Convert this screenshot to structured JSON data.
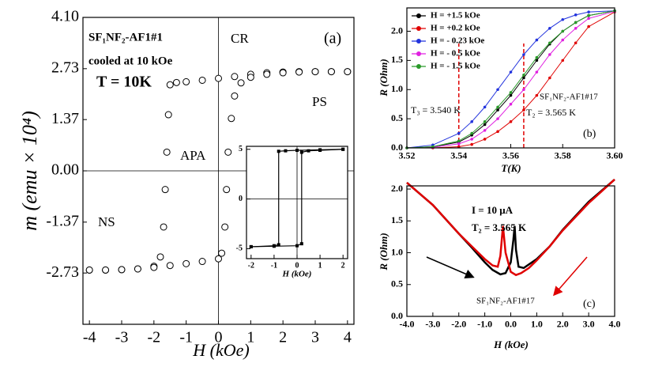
{
  "chart_data": [
    {
      "type": "scatter",
      "xlabel": "H (kOe)",
      "ylabel": "m (emu × 10⁴)",
      "xlim": [
        -4.2,
        4.2
      ],
      "ylim": [
        -4.1,
        4.1
      ],
      "xticks": [
        -4,
        -3,
        -2,
        -1,
        0,
        1,
        2,
        3,
        4
      ],
      "yticks": [
        {
          "value": 4.1,
          "label": "4.10"
        },
        2.73,
        1.37,
        {
          "value": 0,
          "label": "0.00"
        },
        -1.37,
        -2.73
      ],
      "zero_lines": true,
      "marker": "circle",
      "series": [
        {
          "color": "#000000",
          "x": [
            4,
            3.5,
            3,
            2.5,
            2,
            1.5,
            1,
            0.5,
            0,
            -0.5,
            -1,
            -1.3,
            -1.5,
            -1.55,
            -1.6,
            -1.65,
            -1.7,
            -1.8,
            -2,
            -2.5,
            -3,
            -3.5,
            -4
          ],
          "values": [
            2.65,
            2.65,
            2.65,
            2.65,
            2.64,
            2.62,
            2.58,
            2.52,
            2.47,
            2.42,
            2.38,
            2.36,
            2.3,
            1.5,
            0.5,
            -0.5,
            -1.5,
            -2.3,
            -2.55,
            -2.62,
            -2.64,
            -2.65,
            -2.65
          ]
        },
        {
          "color": "#000000",
          "x": [
            -4,
            -3.5,
            -3,
            -2.5,
            -2,
            -1.5,
            -1,
            -0.5,
            0,
            0.1,
            0.2,
            0.25,
            0.3,
            0.4,
            0.5,
            0.7,
            1,
            1.5,
            2,
            2.5,
            3,
            3.5,
            4
          ],
          "values": [
            -2.65,
            -2.65,
            -2.64,
            -2.62,
            -2.58,
            -2.53,
            -2.48,
            -2.42,
            -2.35,
            -2.2,
            -1.5,
            -0.5,
            0.5,
            1.4,
            2.0,
            2.35,
            2.5,
            2.58,
            2.62,
            2.64,
            2.65,
            2.65,
            2.65
          ]
        }
      ],
      "annotations": [
        "SF₁NF₂-AF1#1",
        "cooled at 10 kOe",
        "T = 10K",
        "CR",
        "(a)",
        "PS",
        "APA",
        "NS"
      ]
    },
    {
      "type": "line",
      "xlabel": "H (kOe)",
      "xlim": [
        -2.2,
        2.2
      ],
      "ylim": [
        -6,
        5.3
      ],
      "xticks": [
        -2,
        -1,
        0,
        1,
        2
      ],
      "yticks": [
        -5,
        0,
        5
      ],
      "zero_lines": true,
      "marker": "square",
      "series": [
        {
          "color": "#000000",
          "x": [
            2,
            1,
            0,
            -0.5,
            -0.8,
            -0.8,
            -1,
            -2
          ],
          "values": [
            5,
            4.95,
            4.9,
            4.85,
            4.8,
            -4.6,
            -4.7,
            -4.8
          ]
        },
        {
          "color": "#000000",
          "x": [
            -2,
            -1,
            0,
            0.2,
            0.2,
            0.5,
            1,
            2
          ],
          "values": [
            -4.8,
            -4.75,
            -4.7,
            -4.5,
            4.7,
            4.85,
            4.9,
            5
          ]
        }
      ]
    },
    {
      "type": "line",
      "xlabel": "T(K)",
      "ylabel": "R (Ohm)",
      "xlim": [
        3.52,
        3.6
      ],
      "ylim": [
        0,
        2.4
      ],
      "xticks": [
        3.52,
        3.54,
        3.56,
        3.58,
        {
          "value": 3.6,
          "label": "3.60"
        }
      ],
      "yticks": [
        {
          "value": 0,
          "label": "0.0"
        },
        0.5,
        {
          "value": 1,
          "label": "1.0"
        },
        1.5,
        {
          "value": 2,
          "label": "2.0"
        }
      ],
      "marker": "dot",
      "legend": "upper left",
      "vlines": [
        3.54,
        3.565
      ],
      "vline_color": "#e00000",
      "series": [
        {
          "name": "H = +1.5 kOe",
          "color": "#000000",
          "x": [
            3.52,
            3.53,
            3.54,
            3.545,
            3.55,
            3.555,
            3.56,
            3.565,
            3.57,
            3.575,
            3.58,
            3.585,
            3.59,
            3.6
          ],
          "values": [
            0,
            0.02,
            0.1,
            0.22,
            0.4,
            0.65,
            0.9,
            1.2,
            1.5,
            1.78,
            2.0,
            2.15,
            2.27,
            2.35
          ]
        },
        {
          "name": "H = +0.2 kOe",
          "color": "#e00000",
          "x": [
            3.52,
            3.53,
            3.54,
            3.545,
            3.55,
            3.555,
            3.56,
            3.565,
            3.57,
            3.575,
            3.58,
            3.585,
            3.59,
            3.6
          ],
          "values": [
            0,
            0,
            0.02,
            0.06,
            0.15,
            0.28,
            0.45,
            0.65,
            0.9,
            1.2,
            1.5,
            1.8,
            2.08,
            2.33
          ]
        },
        {
          "name": "H = - 0.23 kOe",
          "color": "#2233dd",
          "x": [
            3.52,
            3.53,
            3.54,
            3.545,
            3.55,
            3.555,
            3.56,
            3.565,
            3.57,
            3.575,
            3.58,
            3.585,
            3.59,
            3.6
          ],
          "values": [
            0,
            0.05,
            0.25,
            0.45,
            0.7,
            1.0,
            1.3,
            1.6,
            1.85,
            2.05,
            2.2,
            2.28,
            2.33,
            2.35
          ]
        },
        {
          "name": "H = - 0.5 kOe",
          "color": "#e020e0",
          "x": [
            3.52,
            3.53,
            3.54,
            3.545,
            3.55,
            3.555,
            3.56,
            3.565,
            3.57,
            3.575,
            3.58,
            3.585,
            3.59,
            3.6
          ],
          "values": [
            0,
            0.01,
            0.07,
            0.15,
            0.3,
            0.5,
            0.75,
            1.0,
            1.3,
            1.6,
            1.85,
            2.05,
            2.22,
            2.34
          ]
        },
        {
          "name": "H = - 1.5 kOe",
          "color": "#2a9a2a",
          "x": [
            3.52,
            3.53,
            3.54,
            3.545,
            3.55,
            3.555,
            3.56,
            3.565,
            3.57,
            3.575,
            3.58,
            3.585,
            3.59,
            3.6
          ],
          "values": [
            0,
            0.02,
            0.12,
            0.25,
            0.45,
            0.7,
            0.95,
            1.25,
            1.55,
            1.8,
            2.0,
            2.15,
            2.27,
            2.35
          ]
        }
      ],
      "annotations": [
        "SF₁NF₂-AF1#17",
        "T₃ = 3.540 K",
        "T₂ = 3.565 K",
        "(b)"
      ]
    },
    {
      "type": "line",
      "xlabel": "H (kOe)",
      "ylabel": "R (Ohm)",
      "xlim": [
        -4,
        4
      ],
      "ylim": [
        0,
        2.05
      ],
      "xticks": [
        {
          "value": -4,
          "label": "-4.0"
        },
        {
          "value": -3,
          "label": "-3.0"
        },
        {
          "value": -2,
          "label": "-2.0"
        },
        {
          "value": -1,
          "label": "-1.0"
        },
        {
          "value": 0,
          "label": "0.0"
        },
        {
          "value": 1,
          "label": "1.0"
        },
        {
          "value": 2,
          "label": "2.0"
        },
        {
          "value": 3,
          "label": "3.0"
        },
        {
          "value": 4,
          "label": "4.0"
        }
      ],
      "yticks": [
        {
          "value": 0,
          "label": "0.0"
        },
        0.5,
        {
          "value": 1,
          "label": "1.0"
        },
        1.5,
        {
          "value": 2,
          "label": "2.0"
        }
      ],
      "series": [
        {
          "color": "#000000",
          "x": [
            -4,
            -3,
            -2,
            -1.5,
            -1,
            -0.7,
            -0.4,
            -0.2,
            0,
            0.1,
            0.15,
            0.2,
            0.3,
            0.5,
            1,
            1.5,
            2,
            3,
            4
          ],
          "values": [
            2.1,
            1.75,
            1.3,
            1.08,
            0.85,
            0.73,
            0.66,
            0.68,
            0.85,
            1.2,
            1.42,
            1.05,
            0.78,
            0.76,
            0.9,
            1.1,
            1.36,
            1.8,
            2.15
          ]
        },
        {
          "color": "#e00000",
          "x": [
            -4,
            -3,
            -2,
            -1.5,
            -1,
            -0.7,
            -0.5,
            -0.4,
            -0.3,
            -0.2,
            0,
            0.2,
            0.4,
            0.7,
            1,
            1.5,
            2,
            3,
            4
          ],
          "values": [
            2.1,
            1.75,
            1.3,
            1.1,
            0.9,
            0.8,
            0.78,
            0.95,
            1.42,
            1.0,
            0.7,
            0.65,
            0.68,
            0.76,
            0.88,
            1.1,
            1.35,
            1.78,
            2.15
          ]
        }
      ],
      "annotations": [
        "I = 10 μA",
        "T₂ = 3.565 K",
        "SF₁NF₂-AF1#17",
        "(c)"
      ]
    }
  ]
}
